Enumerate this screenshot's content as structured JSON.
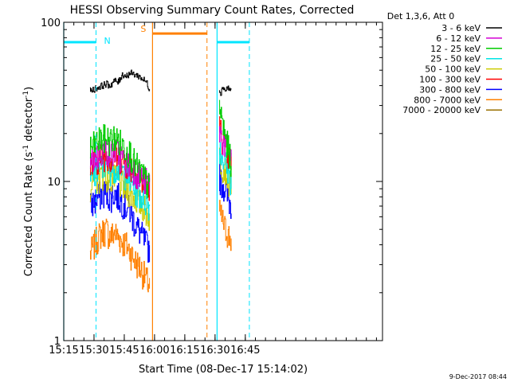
{
  "chart_data": {
    "type": "line",
    "title": "HESSI Observing Summary Count Rates, Corrected",
    "xlabel": "Start Time (08-Dec-17 15:14:02)",
    "ylabel_main": "Corrected Count Rate (s",
    "ylabel_sup1": "-1",
    "ylabel_mid": " detector",
    "ylabel_sup2": "-1",
    "ylabel_end": ")",
    "yscale": "log",
    "ylim": [
      1,
      100
    ],
    "xlim_minutes": [
      15.0,
      173.0
    ],
    "x_ticks": [
      {
        "label": "15:15",
        "t": 15
      },
      {
        "label": "15:30",
        "t": 30
      },
      {
        "label": "15:45",
        "t": 45
      },
      {
        "label": "16:00",
        "t": 60
      },
      {
        "label": "16:15",
        "t": 75
      },
      {
        "label": "16:30",
        "t": 90
      },
      {
        "label": "16:45",
        "t": 105
      }
    ],
    "y_ticks": [
      {
        "label": "100",
        "v": 100
      },
      {
        "label": "10",
        "v": 10
      },
      {
        "label": "1",
        "v": 1
      }
    ],
    "legend_title": "Det 1,3,6, Att 0",
    "legend_position": "right",
    "series": [
      {
        "name": "3 - 6 keV",
        "color": "#000000",
        "segments": [
          {
            "t": [
              28,
              30,
              32,
              34,
              36,
              38,
              40,
              42,
              44,
              46,
              48,
              50,
              52,
              54,
              56,
              57.5
            ],
            "v": [
              37,
              38,
              39,
              40,
              41,
              40,
              43,
              42,
              47,
              46,
              48,
              47,
              46,
              44,
              42,
              38
            ]
          },
          {
            "t": [
              92,
              93,
              94,
              95,
              96,
              97,
              98
            ],
            "v": [
              38,
              36,
              40,
              37,
              39,
              38,
              37
            ]
          }
        ]
      },
      {
        "name": "6 - 12 keV",
        "color": "#d400d4",
        "segments": [
          {
            "t": [
              28,
              30,
              32,
              34,
              36,
              38,
              40,
              42,
              44,
              46,
              48,
              50,
              52,
              54,
              56,
              57.5
            ],
            "v": [
              13,
              14,
              15,
              15.5,
              16,
              15,
              15.5,
              15,
              14,
              13,
              12.5,
              12,
              11,
              10.5,
              10,
              9.5
            ]
          },
          {
            "t": [
              92,
              93,
              94,
              95,
              96,
              97,
              98
            ],
            "v": [
              21,
              19,
              18,
              17,
              16,
              15,
              14
            ]
          }
        ]
      },
      {
        "name": "12 - 25 keV",
        "color": "#00cc00",
        "segments": [
          {
            "t": [
              28,
              30,
              32,
              34,
              36,
              38,
              40,
              42,
              44,
              46,
              48,
              50,
              52,
              54,
              56,
              57.5
            ],
            "v": [
              16,
              17,
              18,
              18.5,
              19,
              18,
              19,
              18,
              17,
              16,
              15,
              13,
              12,
              11,
              10,
              9
            ]
          },
          {
            "t": [
              92,
              93,
              94,
              95,
              96,
              97,
              98
            ],
            "v": [
              30,
              26,
              22,
              19,
              17,
              15,
              13
            ]
          }
        ]
      },
      {
        "name": "25 - 50 keV",
        "color": "#00e5e5",
        "segments": [
          {
            "t": [
              28,
              30,
              32,
              34,
              36,
              38,
              40,
              42,
              44,
              46,
              48,
              50,
              52,
              54,
              56,
              57.5
            ],
            "v": [
              10,
              11,
              12,
              12.5,
              13,
              12,
              12.5,
              12,
              11.5,
              11,
              10,
              9,
              8.5,
              8,
              7.5,
              7
            ]
          },
          {
            "t": [
              92,
              93,
              94,
              95,
              96,
              97,
              98
            ],
            "v": [
              17,
              15,
              14,
              13,
              12,
              11,
              10
            ]
          }
        ]
      },
      {
        "name": "50 - 100 keV",
        "color": "#cccc00",
        "segments": [
          {
            "t": [
              28,
              30,
              32,
              34,
              36,
              38,
              40,
              42,
              44,
              46,
              48,
              50,
              52,
              54,
              56,
              57.5
            ],
            "v": [
              9.5,
              10,
              10.5,
              11,
              11,
              10.5,
              10.5,
              10,
              9.5,
              9,
              8.5,
              8,
              7.5,
              7,
              6.5,
              6
            ]
          },
          {
            "t": [
              92,
              93,
              94,
              95,
              96,
              97,
              98
            ],
            "v": [
              14,
              13,
              12.5,
              12,
              11,
              10,
              9.5
            ]
          }
        ]
      },
      {
        "name": "100 - 300 keV",
        "color": "#ff0000",
        "segments": [
          {
            "t": [
              28,
              30,
              32,
              34,
              36,
              38,
              40,
              42,
              44,
              46,
              48,
              50,
              52,
              54,
              56,
              57.5
            ],
            "v": [
              12,
              13,
              14,
              14.5,
              15,
              14,
              15,
              14,
              14,
              13,
              12.5,
              12,
              11,
              10,
              9.5,
              9.5
            ]
          },
          {
            "t": [
              92,
              93,
              94,
              95,
              96,
              97,
              98
            ],
            "v": [
              22,
              20,
              18,
              16.5,
              15,
              14,
              13.5
            ]
          }
        ]
      },
      {
        "name": "300 - 800 keV",
        "color": "#0000ff",
        "segments": [
          {
            "t": [
              28,
              30,
              32,
              34,
              36,
              38,
              40,
              42,
              44,
              46,
              48,
              50,
              52,
              54,
              56,
              57.5
            ],
            "v": [
              7,
              7.5,
              8,
              8.5,
              8.5,
              8,
              8.5,
              8,
              7.5,
              7,
              6.5,
              5.5,
              5,
              4.5,
              4,
              3.8
            ]
          },
          {
            "t": [
              92,
              93,
              94,
              95,
              96,
              97,
              98
            ],
            "v": [
              11,
              10,
              9.5,
              9,
              8,
              7.5,
              7
            ]
          }
        ]
      },
      {
        "name": "800 - 7000 keV",
        "color": "#ff8000",
        "segments": [
          {
            "t": [
              28,
              30,
              32,
              34,
              36,
              38,
              40,
              42,
              44,
              46,
              48,
              50,
              52,
              54,
              56,
              57.5
            ],
            "v": [
              3.5,
              4,
              4.5,
              4.8,
              5,
              4.5,
              4.8,
              4.5,
              4.2,
              4,
              3.6,
              3.2,
              3,
              2.7,
              2.4,
              2.2
            ]
          },
          {
            "t": [
              92,
              93,
              94,
              95,
              96,
              97,
              98
            ],
            "v": [
              6.5,
              6,
              5.5,
              5,
              4.8,
              4.5,
              4.2
            ]
          }
        ]
      },
      {
        "name": "7000 - 20000 keV",
        "color": "#9a7000",
        "segments": []
      }
    ],
    "annotations": {
      "night_label": "N",
      "saa_label": "S",
      "night_bars": [
        {
          "t0": 15,
          "t1": 31,
          "v": 75
        },
        {
          "t0": 91,
          "t1": 107,
          "v": 75
        }
      ],
      "saa_bars": [
        {
          "t0": 59,
          "t1": 86,
          "v": 85
        }
      ],
      "night_solid_lines": [
        15,
        91
      ],
      "night_dashed_lines": [
        31,
        107
      ],
      "saa_solid_lines": [
        59
      ],
      "saa_dashed_lines": [
        86
      ]
    },
    "timestamp": "9-Dec-2017 08:44"
  }
}
